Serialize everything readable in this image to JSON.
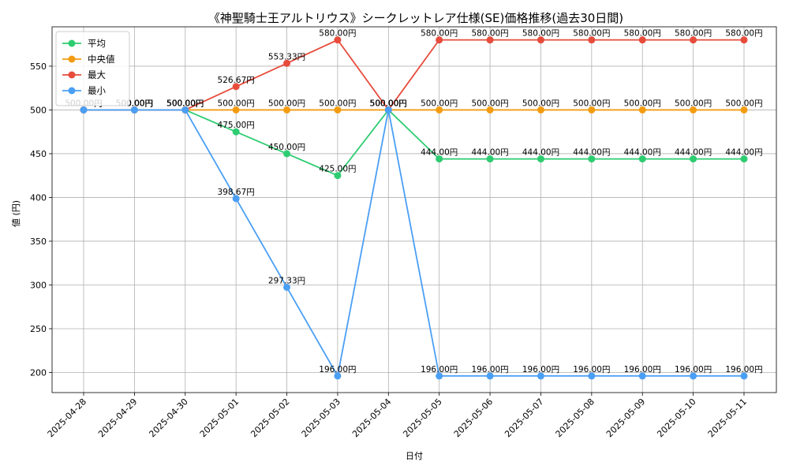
{
  "chart_data": {
    "type": "line",
    "title": "《神聖騎士王アルトリウス》シークレットレア仕様(SE)価格推移(過去30日間)",
    "xlabel": "日付",
    "ylabel": "値 (円)",
    "categories": [
      "2025-04-28",
      "2025-04-29",
      "2025-04-30",
      "2025-05-01",
      "2025-05-02",
      "2025-05-03",
      "2025-05-04",
      "2025-05-05",
      "2025-05-06",
      "2025-05-07",
      "2025-05-08",
      "2025-05-09",
      "2025-05-10",
      "2025-05-11"
    ],
    "ylim": [
      177,
      595
    ],
    "yticks": [
      200,
      250,
      300,
      350,
      400,
      450,
      500,
      550
    ],
    "grid": true,
    "legend": "top-left",
    "label_suffix": "円",
    "series": [
      {
        "name": "平均",
        "color": "#2ecc71",
        "values": [
          500,
          500,
          500,
          475,
          450,
          425,
          500,
          444,
          444,
          444,
          444,
          444,
          444,
          444
        ],
        "labels": [
          "500.00円",
          "500.00円",
          "500.00円",
          "475.00円",
          "450.00円",
          "425.00円",
          "500.00円",
          "444.00円",
          "444.00円",
          "444.00円",
          "444.00円",
          "444.00円",
          "444.00円",
          "444.00円"
        ]
      },
      {
        "name": "中央値",
        "color": "#f39c12",
        "values": [
          500,
          500,
          500,
          500,
          500,
          500,
          500,
          500,
          500,
          500,
          500,
          500,
          500,
          500
        ],
        "labels": [
          "500.00円",
          "500.00円",
          "500.00円",
          "500.00円",
          "500.00円",
          "500.00円",
          "500.00円",
          "500.00円",
          "500.00円",
          "500.00円",
          "500.00円",
          "500.00円",
          "500.00円",
          "500.00円"
        ]
      },
      {
        "name": "最大",
        "color": "#e74c3c",
        "values": [
          500,
          500,
          500,
          526.67,
          553.33,
          580,
          500,
          580,
          580,
          580,
          580,
          580,
          580,
          580
        ],
        "labels": [
          "500.00円",
          "500.00円",
          "500.00円",
          "526.67円",
          "553.33円",
          "580.00円",
          "500.00円",
          "580.00円",
          "580.00円",
          "580.00円",
          "580.00円",
          "580.00円",
          "580.00円",
          "580.00円"
        ]
      },
      {
        "name": "最小",
        "color": "#4a9ff5",
        "values": [
          500,
          500,
          500,
          398.67,
          297.33,
          196,
          500,
          196,
          196,
          196,
          196,
          196,
          196,
          196
        ],
        "labels": [
          "500.00円",
          "500.00円",
          "500.00円",
          "398.67円",
          "297.33円",
          "196.00円",
          "500.00円",
          "196.00円",
          "196.00円",
          "196.00円",
          "196.00円",
          "196.00円",
          "196.00円",
          "196.00円"
        ]
      }
    ]
  }
}
